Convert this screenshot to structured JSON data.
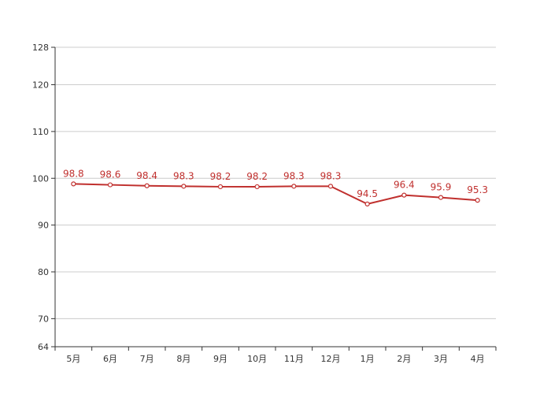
{
  "chart_data": {
    "type": "line",
    "title": "",
    "xlabel": "",
    "ylabel": "",
    "categories": [
      "5月",
      "6月",
      "7月",
      "8月",
      "9月",
      "10月",
      "11月",
      "12月",
      "1月",
      "2月",
      "3月",
      "4月"
    ],
    "series": [
      {
        "values": [
          98.8,
          98.6,
          98.4,
          98.3,
          98.2,
          98.2,
          98.3,
          98.3,
          94.5,
          96.4,
          95.9,
          95.3
        ],
        "labels": [
          "98.8",
          "98.6",
          "98.4",
          "98.3",
          "98.2",
          "98.2",
          "98.3",
          "98.3",
          "94.5",
          "96.4",
          "95.9",
          "95.3"
        ],
        "color": "#c0302e"
      }
    ],
    "ylim": [
      64,
      128
    ],
    "yticks": [
      64,
      70,
      80,
      90,
      100,
      110,
      120,
      128
    ],
    "ytick_labels": [
      "64",
      "70",
      "80",
      "90",
      "100",
      "110",
      "120",
      "128"
    ],
    "grid": true,
    "legend": "none",
    "axis_color": "#333333",
    "grid_color": "#cccccc"
  }
}
